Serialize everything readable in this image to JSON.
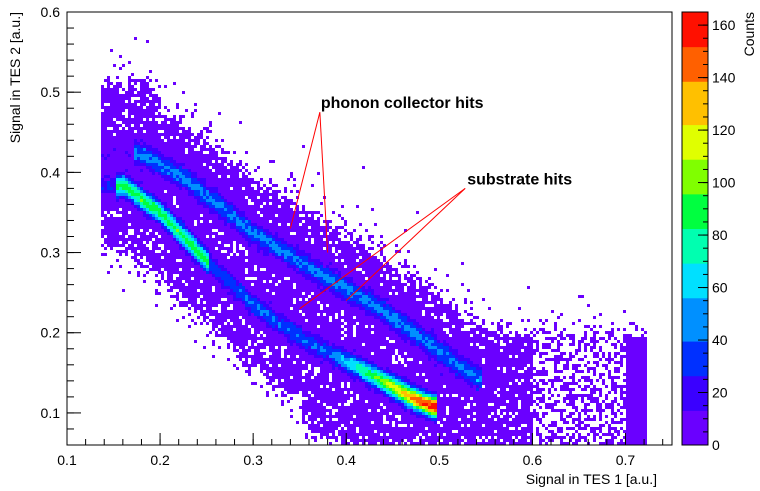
{
  "chart_data": {
    "type": "heatmap",
    "title": "",
    "xlabel": "Signal in TES 1 [a.u.]",
    "ylabel": "Signal in TES 2 [a.u.]",
    "colorbar_label": "Counts",
    "xlim": [
      0.1,
      0.75
    ],
    "ylim": [
      0.06,
      0.6
    ],
    "zlim": [
      0,
      165
    ],
    "x_ticks": [
      "0.1",
      "0.2",
      "0.3",
      "0.4",
      "0.5",
      "0.6",
      "0.7"
    ],
    "y_ticks": [
      "0.1",
      "0.2",
      "0.3",
      "0.4",
      "0.5",
      "0.6"
    ],
    "z_ticks": [
      "0",
      "20",
      "40",
      "60",
      "80",
      "100",
      "120",
      "140",
      "160"
    ],
    "grid": false,
    "colormap": [
      "#6a00ff",
      "#3a00ff",
      "#0030ff",
      "#0090ff",
      "#00e0ff",
      "#00ffb0",
      "#00ff40",
      "#80ff00",
      "#e0ff00",
      "#ffc000",
      "#ff6000",
      "#ff1000"
    ],
    "bands": [
      {
        "label": "substrate band",
        "points": [
          [
            0.16,
            0.385
          ],
          [
            0.2,
            0.35
          ],
          [
            0.25,
            0.29
          ],
          [
            0.3,
            0.235
          ],
          [
            0.35,
            0.195
          ],
          [
            0.4,
            0.165
          ],
          [
            0.44,
            0.14
          ],
          [
            0.47,
            0.12
          ],
          [
            0.49,
            0.11
          ]
        ],
        "peak_counts": 165
      },
      {
        "label": "phonon collector band",
        "points": [
          [
            0.18,
            0.425
          ],
          [
            0.23,
            0.39
          ],
          [
            0.3,
            0.325
          ],
          [
            0.37,
            0.275
          ],
          [
            0.43,
            0.235
          ],
          [
            0.48,
            0.195
          ],
          [
            0.52,
            0.16
          ],
          [
            0.54,
            0.145
          ]
        ],
        "peak_counts": 60
      }
    ],
    "annotations": [
      {
        "text": "phonon collector hits",
        "x": 0.42,
        "y": 0.48,
        "targets": [
          [
            0.34,
            0.33
          ],
          [
            0.38,
            0.3
          ]
        ]
      },
      {
        "text": "substrate hits",
        "x": 0.545,
        "y": 0.385,
        "targets": [
          [
            0.35,
            0.23
          ],
          [
            0.4,
            0.24
          ]
        ]
      }
    ]
  }
}
